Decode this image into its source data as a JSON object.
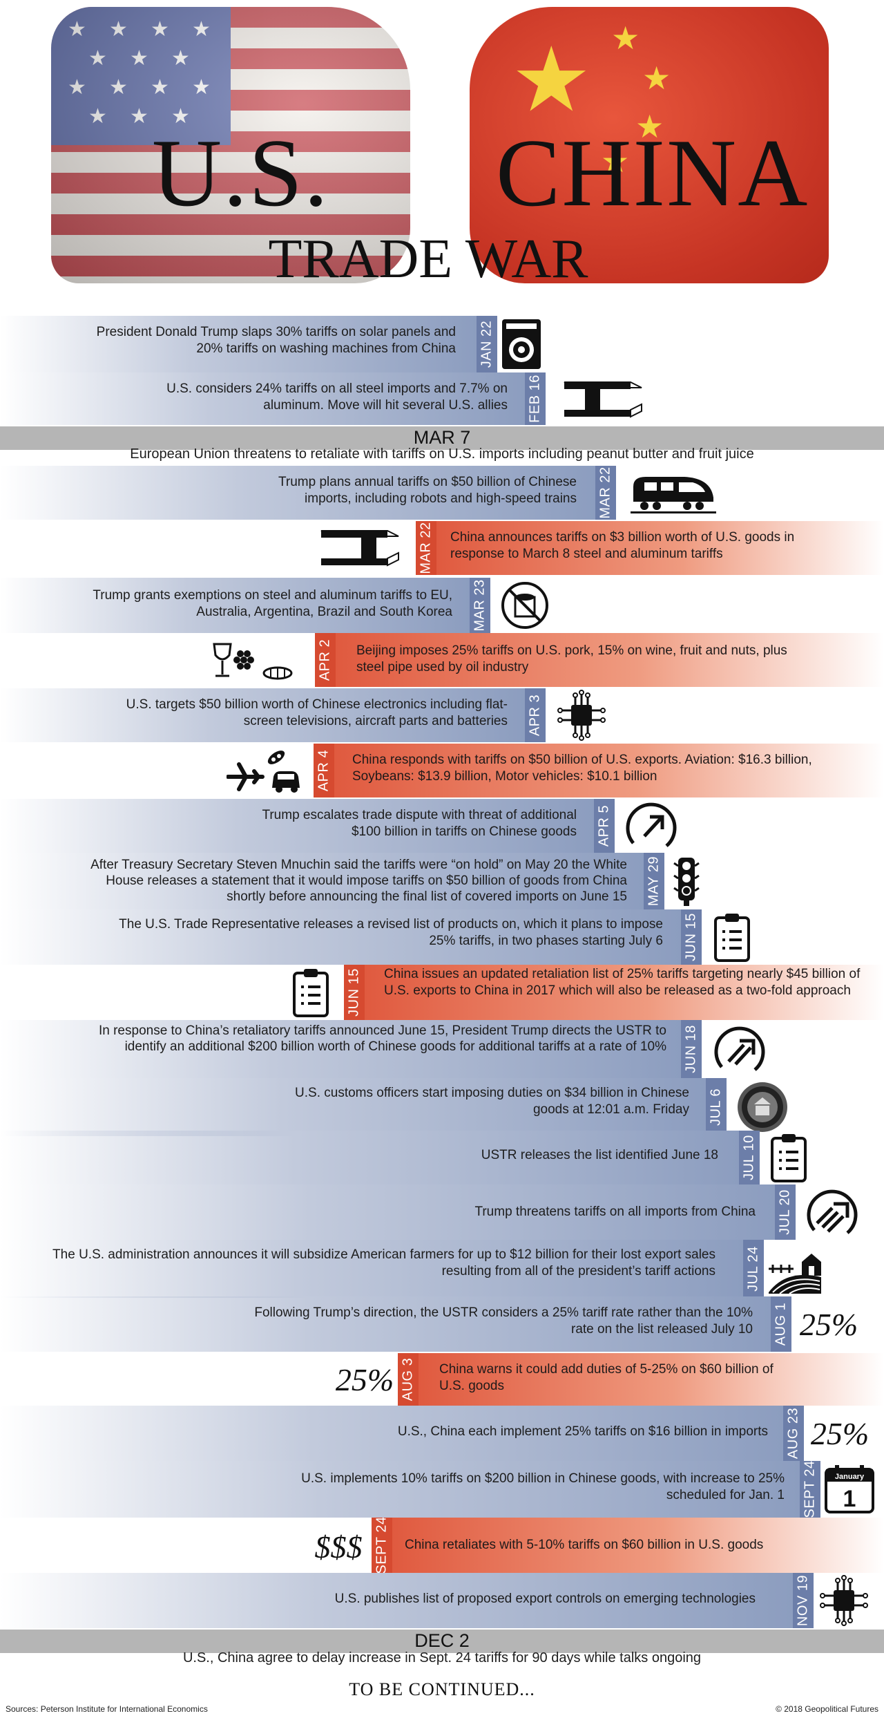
{
  "header": {
    "title_us": "U.S.",
    "title_china": "CHINA",
    "subtitle": "TRADE WAR"
  },
  "events": [
    {
      "side": "us",
      "date": "JAN 22",
      "text": "President Donald Trump slaps 30% tariffs on solar panels and 20% tariffs on washing machines from China",
      "icon": "washing-machine-icon"
    },
    {
      "side": "us",
      "date": "FEB 16",
      "text": "U.S. considers 24% tariffs on all steel imports and 7.7% on aluminum. Move will hit several U.S. allies",
      "icon": "steel-beam-icon"
    },
    {
      "side": "us",
      "date": "MAR 22",
      "text": "Trump plans annual tariffs on $50 billion of Chinese imports, including robots and high-speed trains",
      "icon": "train-icon"
    },
    {
      "side": "china",
      "date": "MAR 22",
      "text": "China announces tariffs on $3 billion worth of U.S. goods in response to March 8 steel and aluminum tariffs",
      "icon": "steel-beam-icon"
    },
    {
      "side": "us",
      "date": "MAR 23",
      "text": "Trump grants exemptions on steel and aluminum tariffs to EU, Australia, Argentina, Brazil and South Korea",
      "icon": "no-tariff-icon"
    },
    {
      "side": "china",
      "date": "APR 2",
      "text": "Beijing imposes 25% tariffs on U.S. pork, 15% on wine, fruit and nuts, plus steel pipe used by oil industry",
      "icon": "wine-fruit-nuts-icon"
    },
    {
      "side": "us",
      "date": "APR 3",
      "text": "U.S. targets $50 billion worth of Chinese electronics including flat-screen televisions, aircraft parts and batteries",
      "icon": "circuit-chip-icon"
    },
    {
      "side": "china",
      "date": "APR 4",
      "text": "China responds with tariffs on $50 billion of U.S. exports. Aviation: $16.3 billion, Soybeans: $13.9 billion, Motor vehicles: $10.1 billion",
      "icon": "plane-soybean-car-icon"
    },
    {
      "side": "us",
      "date": "APR 5",
      "text": "Trump escalates trade dispute with threat of additional $100 billion in tariffs on Chinese goods",
      "icon": "escalate-arrow-icon"
    },
    {
      "side": "us",
      "date": "MAY 29",
      "text": "After Treasury Secretary Steven Mnuchin said the tariffs were “on hold” on May 20 the White House releases a statement that it would impose tariffs on $50 billion of goods from China shortly before announcing the final list of covered imports on June 15",
      "icon": "traffic-light-icon"
    },
    {
      "side": "us",
      "date": "JUN 15",
      "text": "The U.S. Trade Representative releases a revised list of products on, which it plans to impose 25% tariffs, in two phases starting July 6",
      "icon": "clipboard-icon"
    },
    {
      "side": "china",
      "date": "JUN 15",
      "text": "China issues an updated retaliation list of 25% tariffs targeting nearly $45 billion of U.S. exports to China in 2017 which will also be released as a two-fold approach",
      "icon": "clipboard-icon"
    },
    {
      "side": "us",
      "date": "JUN 18",
      "text": "In response to China’s retaliatory tariffs announced June 15, President Trump directs the USTR to identify an additional $200 billion worth of Chinese goods for additional tariffs at a rate of 10%",
      "icon": "escalate-double-arrow-icon"
    },
    {
      "side": "us",
      "date": "JUL 6",
      "text": "U.S. customs officers start imposing duties on $34 billion in Chinese goods at 12:01 a.m. Friday",
      "icon": "customs-seal-icon"
    },
    {
      "side": "us",
      "date": "JUL 10",
      "text": "USTR releases the list identified June 18",
      "icon": "clipboard-icon"
    },
    {
      "side": "us",
      "date": "JUL 20",
      "text": "Trump threatens tariffs on all imports from China",
      "icon": "escalate-triple-arrow-icon"
    },
    {
      "side": "us",
      "date": "JUL 24",
      "text": "The U.S. administration announces it will subsidize American farmers for up to $12 billion for their lost export sales resulting from all of the president’s tariff actions",
      "icon": "farm-icon"
    },
    {
      "side": "us",
      "date": "AUG 1",
      "text": "Following Trump’s direction, the USTR considers a 25% tariff rate rather than the 10% rate on the list released July 10",
      "icon": "percent-label",
      "icon_text": "25%"
    },
    {
      "side": "china",
      "date": "AUG 3",
      "text": "China warns it could add duties of 5-25% on $60 billion of U.S. goods",
      "icon": "percent-label",
      "icon_text": "25%"
    },
    {
      "side": "us",
      "date": "AUG 23",
      "text": "U.S., China each implement 25% tariffs on $16 billion in imports",
      "icon": "percent-label",
      "icon_text": "25%"
    },
    {
      "side": "us",
      "date": "SEPT 24",
      "text": "U.S. implements 10% tariffs on $200 billion in Chinese goods, with increase to 25% scheduled for Jan. 1",
      "icon": "calendar-icon",
      "icon_month": "January",
      "icon_day": "1"
    },
    {
      "side": "china",
      "date": "SEPT 24",
      "text": "China retaliates with 5-10% tariffs on $60 billion in U.S. goods",
      "icon": "money-label",
      "icon_text": "$$$"
    },
    {
      "side": "us",
      "date": "NOV 19",
      "text": "U.S. publishes list of proposed export controls on emerging technologies",
      "icon": "circuit-chip-icon"
    }
  ],
  "milestones": [
    {
      "date": "MAR 7",
      "text": "European Union threatens to retaliate with tariffs on U.S. imports including peanut butter and fruit juice"
    },
    {
      "date": "DEC 2",
      "text": "U.S., China agree to delay increase in Sept. 24 tariffs for 90 days while talks ongoing"
    }
  ],
  "footer": {
    "continued": "TO BE CONTINUED...",
    "sources": "Sources: Peterson Institute for International Economics",
    "copyright": "© 2018 Geopolitical Futures"
  },
  "colors": {
    "us_band": "#8c9dbf",
    "us_date": "#6c7ea9",
    "china_band": "#e05a3f",
    "china_date": "#d64a30",
    "strip": "#b5b5b5"
  }
}
